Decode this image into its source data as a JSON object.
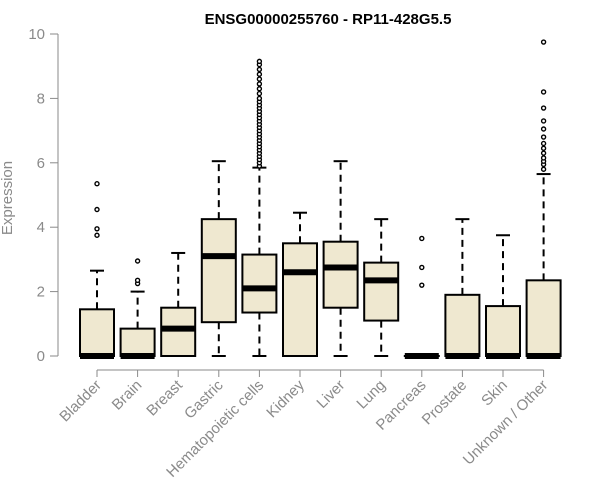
{
  "chart_data": {
    "type": "boxplot",
    "title": "ENSG00000255760 - RP11-428G5.5",
    "xlabel": "",
    "ylabel": "Expression",
    "ylim": [
      0,
      10
    ],
    "yticks": [
      0,
      2,
      4,
      6,
      8,
      10
    ],
    "grid": false,
    "legend": "none",
    "box_fill": "#efe8d0",
    "median_color": "#000000",
    "categories": [
      "Bladder",
      "Brain",
      "Breast",
      "Gastric",
      "Hematopoietic cells",
      "Kidney",
      "Liver",
      "Lung",
      "Pancreas",
      "Prostate",
      "Skin",
      "Unknown / Other"
    ],
    "boxes": [
      {
        "whisker_low": 0,
        "q1": 0,
        "median": 0,
        "q3": 1.45,
        "whisker_high": 2.65,
        "outliers": [
          3.75,
          3.95,
          4.55,
          5.35
        ]
      },
      {
        "whisker_low": 0,
        "q1": 0,
        "median": 0,
        "q3": 0.85,
        "whisker_high": 2.0,
        "outliers": [
          2.25,
          2.35,
          2.95
        ]
      },
      {
        "whisker_low": 0,
        "q1": 0,
        "median": 0.85,
        "q3": 1.5,
        "whisker_high": 3.2,
        "outliers": []
      },
      {
        "whisker_low": 0,
        "q1": 1.05,
        "median": 3.1,
        "q3": 4.25,
        "whisker_high": 6.05,
        "outliers": []
      },
      {
        "whisker_low": 0,
        "q1": 1.35,
        "median": 2.1,
        "q3": 3.15,
        "whisker_high": 5.85,
        "outliers": [
          5.9,
          6.0,
          6.1,
          6.2,
          6.3,
          6.4,
          6.5,
          6.6,
          6.7,
          6.8,
          6.9,
          7.0,
          7.1,
          7.2,
          7.3,
          7.4,
          7.5,
          7.6,
          7.7,
          7.8,
          7.9,
          8.0,
          8.15,
          8.3,
          8.45,
          8.6,
          8.75,
          8.9,
          9.05,
          9.15
        ]
      },
      {
        "whisker_low": 0,
        "q1": 0,
        "median": 2.6,
        "q3": 3.5,
        "whisker_high": 4.45,
        "outliers": []
      },
      {
        "whisker_low": 0,
        "q1": 1.5,
        "median": 2.75,
        "q3": 3.55,
        "whisker_high": 6.05,
        "outliers": []
      },
      {
        "whisker_low": 0,
        "q1": 1.1,
        "median": 2.35,
        "q3": 2.9,
        "whisker_high": 4.25,
        "outliers": []
      },
      {
        "whisker_low": 0,
        "q1": 0,
        "median": 0,
        "q3": 0,
        "whisker_high": 0,
        "outliers": [
          2.2,
          2.75,
          3.65
        ]
      },
      {
        "whisker_low": 0,
        "q1": 0,
        "median": 0,
        "q3": 1.9,
        "whisker_high": 4.25,
        "outliers": []
      },
      {
        "whisker_low": 0,
        "q1": 0,
        "median": 0,
        "q3": 1.55,
        "whisker_high": 3.75,
        "outliers": []
      },
      {
        "whisker_low": 0,
        "q1": 0,
        "median": 0,
        "q3": 2.35,
        "whisker_high": 5.65,
        "outliers": [
          5.8,
          5.95,
          6.05,
          6.15,
          6.3,
          6.45,
          6.6,
          6.8,
          7.05,
          7.3,
          7.7,
          8.2,
          9.75
        ]
      }
    ]
  }
}
